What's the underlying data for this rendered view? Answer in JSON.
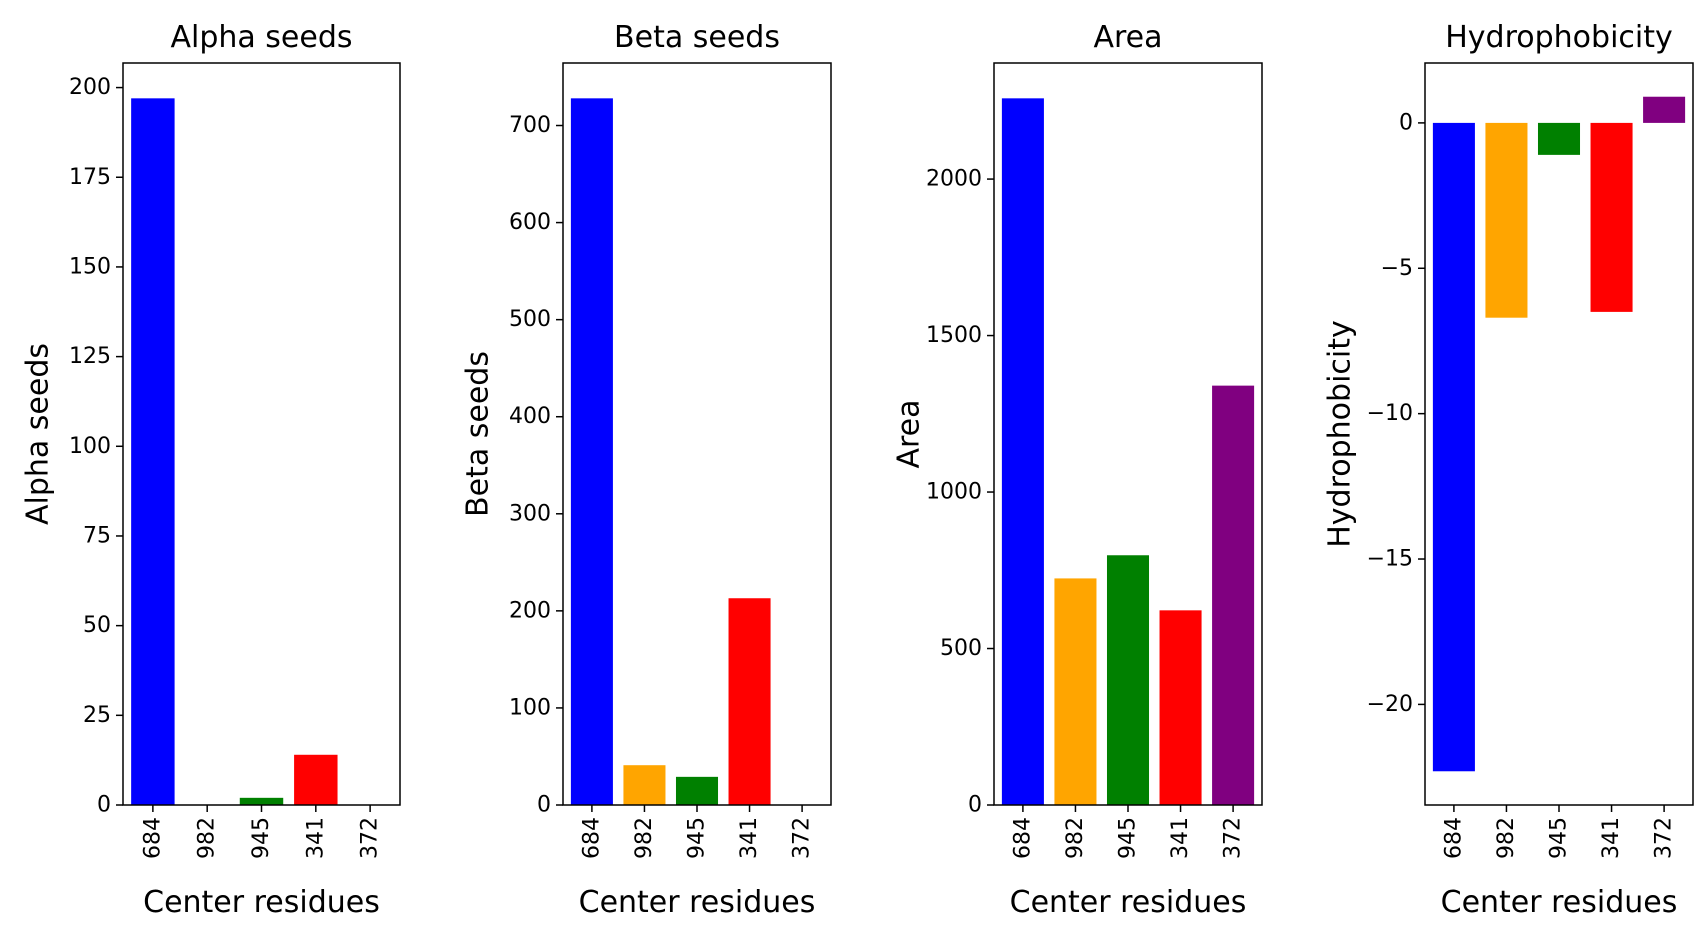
{
  "figure": {
    "xlabel": "Center residues",
    "categories": [
      "684",
      "982",
      "945",
      "341",
      "372"
    ],
    "bar_colors": [
      "#0000ff",
      "#ffa500",
      "#008000",
      "#ff0000",
      "#800080"
    ]
  },
  "chart_data": [
    {
      "type": "bar",
      "title": "Alpha seeds",
      "xlabel": "Center residues",
      "ylabel": "Alpha seeds",
      "categories": [
        "684",
        "982",
        "945",
        "341",
        "372"
      ],
      "values": [
        197,
        0,
        2,
        14,
        0
      ],
      "ylim": [
        0,
        206.85
      ],
      "yticks": [
        0,
        25,
        50,
        75,
        100,
        125,
        150,
        175,
        200
      ],
      "grid": false
    },
    {
      "type": "bar",
      "title": "Beta seeds",
      "xlabel": "Center residues",
      "ylabel": "Beta seeds",
      "categories": [
        "684",
        "982",
        "945",
        "341",
        "372"
      ],
      "values": [
        728,
        41,
        29,
        213,
        0
      ],
      "ylim": [
        0,
        764.4
      ],
      "yticks": [
        0,
        100,
        200,
        300,
        400,
        500,
        600,
        700
      ],
      "grid": false
    },
    {
      "type": "bar",
      "title": "Area",
      "xlabel": "Center residues",
      "ylabel": "Area",
      "categories": [
        "684",
        "982",
        "945",
        "341",
        "372"
      ],
      "values": [
        2258,
        724,
        798,
        622,
        1340
      ],
      "ylim": [
        0,
        2370.9
      ],
      "yticks": [
        0,
        500,
        1000,
        1500,
        2000
      ],
      "grid": false
    },
    {
      "type": "bar",
      "title": "Hydrophobicity",
      "xlabel": "Center residues",
      "ylabel": "Hydrophobicity",
      "categories": [
        "684",
        "982",
        "945",
        "341",
        "372"
      ],
      "values": [
        -22.3,
        -6.7,
        -1.1,
        -6.5,
        0.9
      ],
      "ylim": [
        -23.46,
        2.06
      ],
      "yticks": [
        -20,
        -15,
        -10,
        -5,
        0
      ],
      "ytick_labels": [
        "−20",
        "−15",
        "−10",
        "−5",
        "0"
      ],
      "grid": false
    }
  ]
}
